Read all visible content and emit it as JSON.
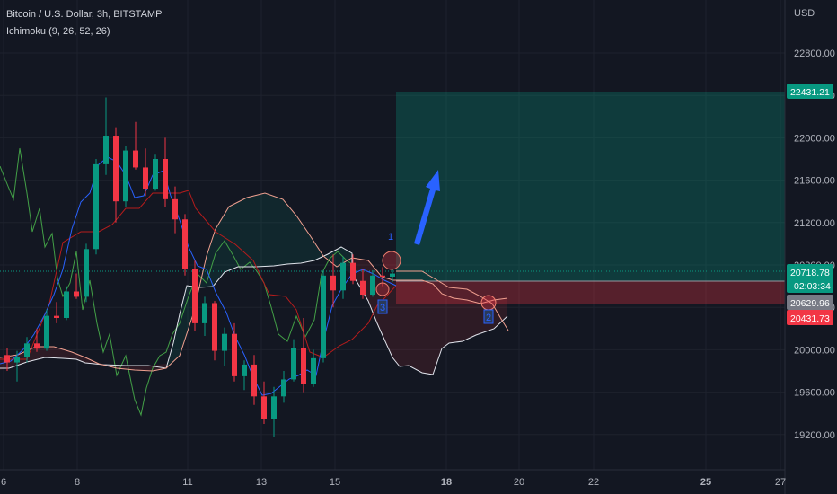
{
  "header": {
    "symbol_line": "Bitcoin / U.S. Dollar, 3h, BITSTAMP",
    "indicator_line": "Ichimoku (9, 26, 52, 26)"
  },
  "price_scale": {
    "currency": "USD",
    "ticks": [
      "22800.00",
      "22400.00",
      "22000.00",
      "21600.00",
      "21200.00",
      "20800.00",
      "20400.00",
      "20000.00",
      "19600.00",
      "19200.00"
    ]
  },
  "time_scale": {
    "ticks": [
      {
        "label": "6",
        "bold": false
      },
      {
        "label": "8",
        "bold": false
      },
      {
        "label": "11",
        "bold": false
      },
      {
        "label": "13",
        "bold": false
      },
      {
        "label": "15",
        "bold": false
      },
      {
        "label": "18",
        "bold": true
      },
      {
        "label": "20",
        "bold": false
      },
      {
        "label": "22",
        "bold": false
      },
      {
        "label": "25",
        "bold": true
      },
      {
        "label": "27",
        "bold": false
      }
    ]
  },
  "price_tags": {
    "target": {
      "label": "22431.21",
      "color": "#089981"
    },
    "last": {
      "label": "20718.78",
      "sub": "02:03:34",
      "color": "#089981"
    },
    "entry": {
      "label": "20629.96",
      "color": "#787b86"
    },
    "stop": {
      "label": "20431.73",
      "color": "#f23645"
    }
  },
  "annotations": {
    "marker_1": "1",
    "marker_2": "2",
    "marker_3": "3"
  },
  "colors": {
    "background": "#131722",
    "up": "#089981",
    "down": "#f23645",
    "tenkan": "#2962ff",
    "kijun": "#b71c1c",
    "lagging": "#43a047",
    "span_a": "#f0a090",
    "span_b": "#e0e3eb",
    "arrow": "#2962ff"
  },
  "chart_data": {
    "type": "candlestick",
    "symbol": "Bitcoin / U.S. Dollar",
    "interval": "3h",
    "exchange": "BITSTAMP",
    "indicator": "Ichimoku (9, 26, 52, 26)",
    "ylim": [
      18975,
      23150
    ],
    "x_ticks": [
      "6",
      "8",
      "11",
      "13",
      "15",
      "18",
      "20",
      "22",
      "25",
      "27"
    ],
    "candles_ohlc_approx": [
      [
        19950,
        20020,
        19800,
        19880
      ],
      [
        19880,
        19990,
        19700,
        19930
      ],
      [
        19930,
        20120,
        19880,
        20060
      ],
      [
        20060,
        20200,
        19980,
        20010
      ],
      [
        20010,
        20380,
        19990,
        20320
      ],
      [
        20320,
        20450,
        20250,
        20300
      ],
      [
        20300,
        20600,
        20280,
        20550
      ],
      [
        20550,
        20720,
        20480,
        20500
      ],
      [
        20500,
        21000,
        20450,
        20950
      ],
      [
        20950,
        21800,
        20900,
        21750
      ],
      [
        21750,
        22380,
        21650,
        22020
      ],
      [
        22020,
        22100,
        21200,
        21400
      ],
      [
        21400,
        21920,
        21350,
        21880
      ],
      [
        21880,
        22150,
        21700,
        21720
      ],
      [
        21720,
        21900,
        21450,
        21520
      ],
      [
        21520,
        21840,
        21500,
        21800
      ],
      [
        21800,
        22000,
        21350,
        21420
      ],
      [
        21420,
        21540,
        21100,
        21230
      ],
      [
        21230,
        21280,
        20700,
        20760
      ],
      [
        20760,
        20840,
        20180,
        20250
      ],
      [
        20250,
        20500,
        20130,
        20440
      ],
      [
        20440,
        20460,
        19900,
        19990
      ],
      [
        19990,
        20210,
        19850,
        20150
      ],
      [
        20150,
        20250,
        19700,
        19750
      ],
      [
        19750,
        19900,
        19620,
        19860
      ],
      [
        19860,
        19950,
        19480,
        19560
      ],
      [
        19560,
        19700,
        19300,
        19350
      ],
      [
        19350,
        19650,
        19180,
        19560
      ],
      [
        19560,
        19800,
        19500,
        19720
      ],
      [
        19720,
        20100,
        19700,
        20020
      ],
      [
        20020,
        20300,
        19600,
        19680
      ],
      [
        19680,
        20000,
        19650,
        19920
      ],
      [
        19920,
        20750,
        19880,
        20700
      ],
      [
        20700,
        20900,
        20400,
        20560
      ],
      [
        20560,
        20880,
        20480,
        20820
      ],
      [
        20820,
        20900,
        20620,
        20650
      ],
      [
        20650,
        20760,
        20480,
        20520
      ],
      [
        20520,
        20750,
        20500,
        20700
      ],
      [
        20700,
        20780,
        20600,
        20690
      ],
      [
        20690,
        20760,
        20640,
        20718.78
      ]
    ],
    "position": {
      "type": "long",
      "entry": 20629.96,
      "target": 22431.21,
      "stop": 20431.73,
      "last": 20718.78
    }
  }
}
